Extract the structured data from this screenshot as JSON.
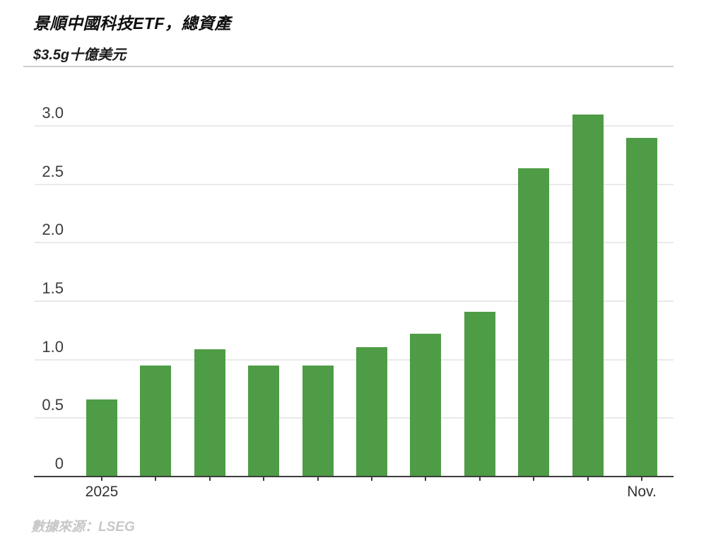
{
  "header": {
    "title": "景順中國科技ETF，總資產",
    "subtitle": "$3.5g十億美元"
  },
  "footer": {
    "source": "數據來源：LSEG"
  },
  "chart_data": {
    "type": "bar",
    "title": "景順中國科技ETF，總資產",
    "unit_label": "$3.5g十億美元",
    "values": [
      0.66,
      0.95,
      1.09,
      0.95,
      0.95,
      1.11,
      1.22,
      1.41,
      2.64,
      3.1,
      2.9
    ],
    "x_tick_labels": [
      {
        "index": 0,
        "label": "2025"
      },
      {
        "index": 10,
        "label": "Nov."
      }
    ],
    "y_ticks": [
      0,
      0.5,
      1.0,
      1.5,
      2.0,
      2.5,
      3.0
    ],
    "ylim": [
      0,
      3.1
    ],
    "bar_color": "#4f9c46",
    "grid": true,
    "legend": false,
    "source": "數據來源：LSEG"
  }
}
